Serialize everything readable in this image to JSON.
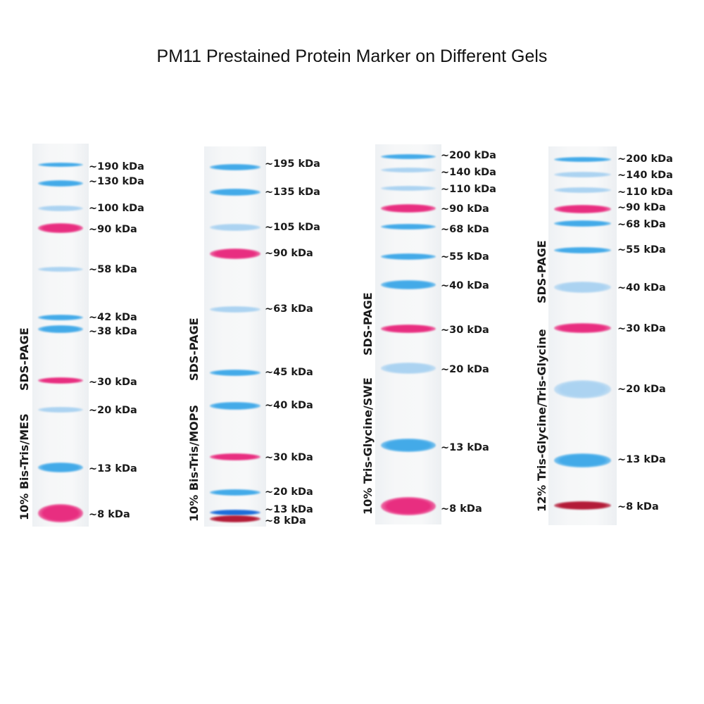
{
  "title": "PM11 Prestained Protein Marker on Different Gels",
  "colors": {
    "blue": "#3aa6e8",
    "light_blue": "#9fcdf0",
    "pink": "#e8247a",
    "dark_red": "#b0102e",
    "deep_blue": "#1266d8"
  },
  "panels": [
    {
      "gel_label": "10% Bis-Tris/MES",
      "method_label": "SDS-PAGE",
      "bands": [
        {
          "label": "~190 kDa",
          "color": "blue"
        },
        {
          "label": "~130 kDa",
          "color": "blue"
        },
        {
          "label": "~100 kDa",
          "color": "light_blue"
        },
        {
          "label": "~90 kDa",
          "color": "pink"
        },
        {
          "label": "~58 kDa",
          "color": "light_blue"
        },
        {
          "label": "~42 kDa",
          "color": "blue"
        },
        {
          "label": "~38 kDa",
          "color": "blue"
        },
        {
          "label": "~30 kDa",
          "color": "pink"
        },
        {
          "label": "~20 kDa",
          "color": "light_blue"
        },
        {
          "label": "~13 kDa",
          "color": "blue"
        },
        {
          "label": "~8 kDa",
          "color": "pink"
        }
      ]
    },
    {
      "gel_label": "10% Bis-Tris/MOPS",
      "method_label": "SDS-PAGE",
      "bands": [
        {
          "label": "~195 kDa",
          "color": "blue"
        },
        {
          "label": "~135 kDa",
          "color": "blue"
        },
        {
          "label": "~105 kDa",
          "color": "light_blue"
        },
        {
          "label": "~90 kDa",
          "color": "pink"
        },
        {
          "label": "~63 kDa",
          "color": "light_blue"
        },
        {
          "label": "~45 kDa",
          "color": "blue"
        },
        {
          "label": "~40 kDa",
          "color": "blue"
        },
        {
          "label": "~30 kDa",
          "color": "pink"
        },
        {
          "label": "~20 kDa",
          "color": "blue"
        },
        {
          "label": "~13 kDa",
          "color": "deep_blue"
        },
        {
          "label": "~8 kDa",
          "color": "dark_red"
        }
      ]
    },
    {
      "gel_label": "10% Tris-Glycine/SWE",
      "method_label": "SDS-PAGE",
      "bands": [
        {
          "label": "~200 kDa",
          "color": "blue"
        },
        {
          "label": "~140 kDa",
          "color": "light_blue"
        },
        {
          "label": "~110 kDa",
          "color": "light_blue"
        },
        {
          "label": "~90 kDa",
          "color": "pink"
        },
        {
          "label": "~68 kDa",
          "color": "blue"
        },
        {
          "label": "~55 kDa",
          "color": "blue"
        },
        {
          "label": "~40 kDa",
          "color": "blue"
        },
        {
          "label": "~30 kDa",
          "color": "pink"
        },
        {
          "label": "~20 kDa",
          "color": "light_blue"
        },
        {
          "label": "~13 kDa",
          "color": "blue"
        },
        {
          "label": "~8 kDa",
          "color": "pink"
        }
      ]
    },
    {
      "gel_label": "12% Tris-Glycine/Tris-Glycine",
      "method_label": "SDS-PAGE",
      "bands": [
        {
          "label": "~200 kDa",
          "color": "blue"
        },
        {
          "label": "~140 kDa",
          "color": "light_blue"
        },
        {
          "label": "~110 kDa",
          "color": "light_blue"
        },
        {
          "label": "~90 kDa",
          "color": "pink"
        },
        {
          "label": "~68 kDa",
          "color": "blue"
        },
        {
          "label": "~55 kDa",
          "color": "blue"
        },
        {
          "label": "~40 kDa",
          "color": "light_blue"
        },
        {
          "label": "~30 kDa",
          "color": "pink"
        },
        {
          "label": "~20 kDa",
          "color": "light_blue"
        },
        {
          "label": "~13 kDa",
          "color": "blue"
        },
        {
          "label": "~8 kDa",
          "color": "dark_red"
        }
      ]
    }
  ]
}
